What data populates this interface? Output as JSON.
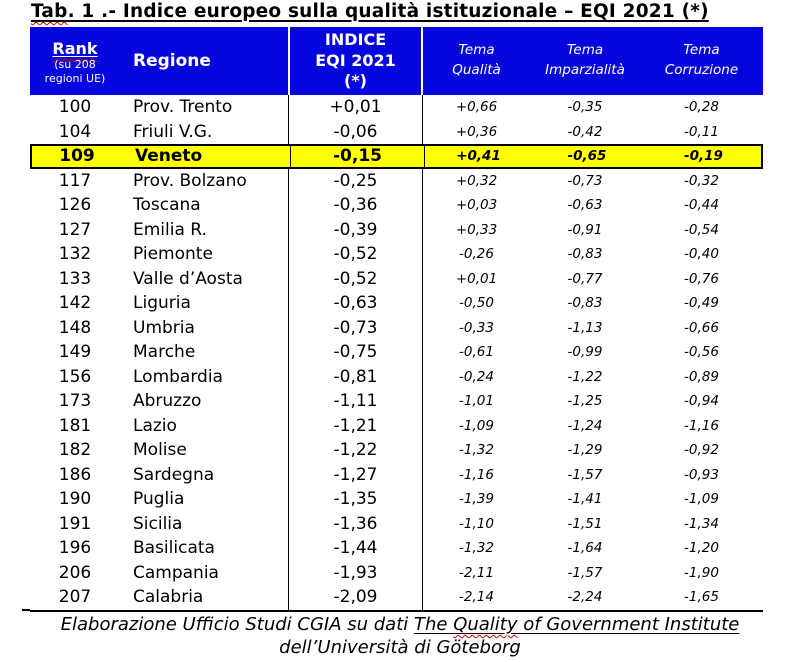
{
  "title": {
    "spell": "Tab",
    "rest": ". 1 .- Indice europeo sulla qualità istituzionale – EQI 2021 (*)"
  },
  "colors": {
    "header_bg": "#0707dd",
    "highlight_bg": "#ffff00",
    "spellcheck_red": "#d40000"
  },
  "table": {
    "header": {
      "rank": {
        "label": "Rank",
        "sub": "(su 208 regioni UE)"
      },
      "region_label": "Regione",
      "index_lines": {
        "l1": "INDICE",
        "l2": "EQI 2021",
        "l3": "(*)"
      },
      "temas": [
        {
          "l1": "Tema",
          "l2": "Qualità"
        },
        {
          "l1": "Tema",
          "l2": "Imparzialità"
        },
        {
          "l1": "Tema",
          "l2": "Corruzione"
        }
      ]
    },
    "rows": [
      {
        "rank": "100",
        "region": "Prov. Trento",
        "index": "+0,01",
        "qualita": "+0,66",
        "imparzialita": "-0,35",
        "corruzione": "-0,28",
        "highlight": false
      },
      {
        "rank": "104",
        "region": "Friuli V.G.",
        "index": "-0,06",
        "qualita": "+0,36",
        "imparzialita": "-0,42",
        "corruzione": "-0,11",
        "highlight": false
      },
      {
        "rank": "109",
        "region": "Veneto",
        "index": "-0,15",
        "qualita": "+0,41",
        "imparzialita": "-0,65",
        "corruzione": "-0,19",
        "highlight": true
      },
      {
        "rank": "117",
        "region": "Prov. Bolzano",
        "index": "-0,25",
        "qualita": "+0,32",
        "imparzialita": "-0,73",
        "corruzione": "-0,32",
        "highlight": false
      },
      {
        "rank": "126",
        "region": "Toscana",
        "index": "-0,36",
        "qualita": "+0,03",
        "imparzialita": "-0,63",
        "corruzione": "-0,44",
        "highlight": false
      },
      {
        "rank": "127",
        "region": "Emilia R.",
        "index": "-0,39",
        "qualita": "+0,33",
        "imparzialita": "-0,91",
        "corruzione": "-0,54",
        "highlight": false
      },
      {
        "rank": "132",
        "region": "Piemonte",
        "index": "-0,52",
        "qualita": "-0,26",
        "imparzialita": "-0,83",
        "corruzione": "-0,40",
        "highlight": false
      },
      {
        "rank": "133",
        "region": "Valle d’Aosta",
        "index": "-0,52",
        "qualita": "+0,01",
        "imparzialita": "-0,77",
        "corruzione": "-0,76",
        "highlight": false
      },
      {
        "rank": "142",
        "region": "Liguria",
        "index": "-0,63",
        "qualita": "-0,50",
        "imparzialita": "-0,83",
        "corruzione": "-0,49",
        "highlight": false
      },
      {
        "rank": "148",
        "region": "Umbria",
        "index": "-0,73",
        "qualita": "-0,33",
        "imparzialita": "-1,13",
        "corruzione": "-0,66",
        "highlight": false
      },
      {
        "rank": "149",
        "region": "Marche",
        "index": "-0,75",
        "qualita": "-0,61",
        "imparzialita": "-0,99",
        "corruzione": "-0,56",
        "highlight": false
      },
      {
        "rank": "156",
        "region": "Lombardia",
        "index": "-0,81",
        "qualita": "-0,24",
        "imparzialita": "-1,22",
        "corruzione": "-0,89",
        "highlight": false
      },
      {
        "rank": "173",
        "region": "Abruzzo",
        "index": "-1,11",
        "qualita": "-1,01",
        "imparzialita": "-1,25",
        "corruzione": "-0,94",
        "highlight": false
      },
      {
        "rank": "181",
        "region": "Lazio",
        "index": "-1,21",
        "qualita": "-1,09",
        "imparzialita": "-1,24",
        "corruzione": "-1,16",
        "highlight": false
      },
      {
        "rank": "182",
        "region": "Molise",
        "index": "-1,22",
        "qualita": "-1,32",
        "imparzialita": "-1,29",
        "corruzione": "-0,92",
        "highlight": false
      },
      {
        "rank": "186",
        "region": "Sardegna",
        "index": "-1,27",
        "qualita": "-1,16",
        "imparzialita": "-1,57",
        "corruzione": "-0,93",
        "highlight": false
      },
      {
        "rank": "190",
        "region": "Puglia",
        "index": "-1,35",
        "qualita": "-1,39",
        "imparzialita": "-1,41",
        "corruzione": "-1,09",
        "highlight": false
      },
      {
        "rank": "191",
        "region": "Sicilia",
        "index": "-1,36",
        "qualita": "-1,10",
        "imparzialita": "-1,51",
        "corruzione": "-1,34",
        "highlight": false
      },
      {
        "rank": "196",
        "region": "Basilicata",
        "index": "-1,44",
        "qualita": "-1,32",
        "imparzialita": "-1,64",
        "corruzione": "-1,20",
        "highlight": false
      },
      {
        "rank": "206",
        "region": "Campania",
        "index": "-1,93",
        "qualita": "-2,11",
        "imparzialita": "-1,57",
        "corruzione": "-1,90",
        "highlight": false
      },
      {
        "rank": "207",
        "region": "Calabria",
        "index": "-2,09",
        "qualita": "-2,14",
        "imparzialita": "-2,24",
        "corruzione": "-1,65",
        "highlight": false
      }
    ]
  },
  "footer": {
    "line1_text": "Elaborazione Ufficio Studi CGIA su dati ",
    "line1_source_pre": "The ",
    "line1_source_wavy": "Quality",
    "line1_source_post": " of Government Institute",
    "line2": "dell’Università di Göteborg"
  }
}
